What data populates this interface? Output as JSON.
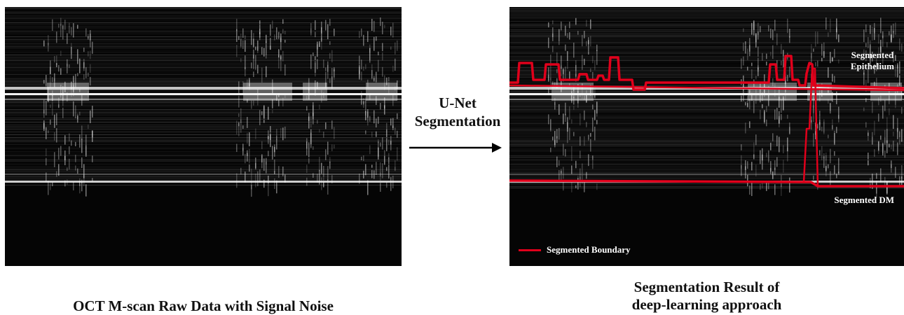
{
  "left_panel": {
    "caption": "OCT M-scan Raw Data with Signal Noise"
  },
  "arrow": {
    "label_line1": "U-Net",
    "label_line2": "Segmentation"
  },
  "right_panel": {
    "caption_line1": "Segmentation Result of",
    "caption_line2": "deep-learning approach",
    "label_epithelium_line1": "Segmented",
    "label_epithelium_line2": "Epithelium",
    "label_dm": "Segmented DM",
    "legend_label": "Segmented Boundary"
  },
  "colors": {
    "boundary": "#e0001b",
    "background": "#050505",
    "signal": "#ffffff"
  }
}
